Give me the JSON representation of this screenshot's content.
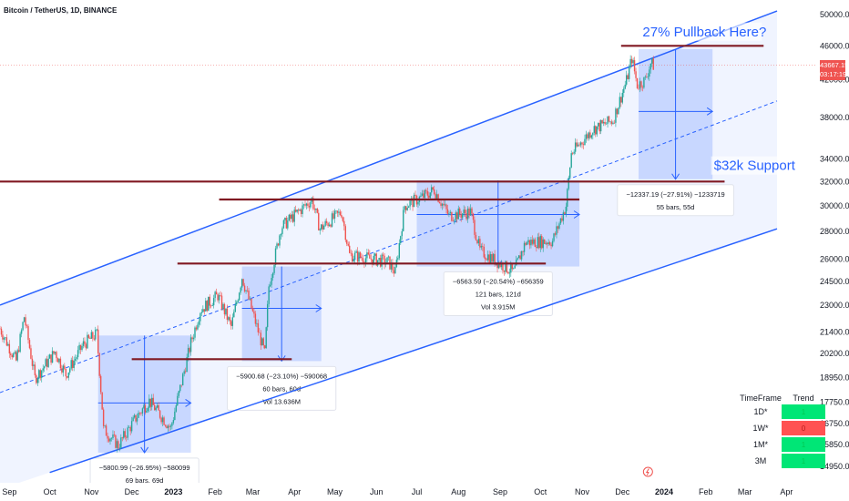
{
  "header": {
    "title": "Bitcoin / TetherUS, 1D, BINANCE"
  },
  "price_tag": {
    "price": "43667.15",
    "countdown": "03:17:19"
  },
  "colors": {
    "up": "#26a69a",
    "down": "#ef5350",
    "channel": "#2962ff",
    "level": "#801922",
    "box": "#2962ff"
  },
  "chart_data": {
    "type": "candlestick",
    "title": "Bitcoin / TetherUS, 1D, BINANCE",
    "y_scale": "log",
    "ylim": [
      14300,
      52000
    ],
    "y_ticks": [
      "14950.00",
      "15850.00",
      "16750.00",
      "17750.00",
      "18950.00",
      "20200.00",
      "21400.00",
      "23000.00",
      "24500.00",
      "26000.00",
      "28000.00",
      "30000.00",
      "32000.00",
      "34000.00",
      "38000.00",
      "42000.00",
      "46000.00",
      "50000.00"
    ],
    "x_ticks": [
      {
        "label": "Sep",
        "date": "2022-09-01",
        "bold": false
      },
      {
        "label": "Oct",
        "date": "2022-10-01",
        "bold": false
      },
      {
        "label": "Nov",
        "date": "2022-11-01",
        "bold": false
      },
      {
        "label": "Dec",
        "date": "2022-12-01",
        "bold": false
      },
      {
        "label": "2023",
        "date": "2023-01-01",
        "bold": true
      },
      {
        "label": "Feb",
        "date": "2023-02-01",
        "bold": false
      },
      {
        "label": "Mar",
        "date": "2023-03-01",
        "bold": false
      },
      {
        "label": "Apr",
        "date": "2023-04-01",
        "bold": false
      },
      {
        "label": "May",
        "date": "2023-05-01",
        "bold": false
      },
      {
        "label": "Jun",
        "date": "2023-06-01",
        "bold": false
      },
      {
        "label": "Jul",
        "date": "2023-07-01",
        "bold": false
      },
      {
        "label": "Aug",
        "date": "2023-08-01",
        "bold": false
      },
      {
        "label": "Sep",
        "date": "2023-09-01",
        "bold": false
      },
      {
        "label": "Oct",
        "date": "2023-10-01",
        "bold": false
      },
      {
        "label": "Nov",
        "date": "2023-11-01",
        "bold": false
      },
      {
        "label": "Dec",
        "date": "2023-12-01",
        "bold": false
      },
      {
        "label": "2024",
        "date": "2024-01-01",
        "bold": true
      },
      {
        "label": "Feb",
        "date": "2024-02-01",
        "bold": false
      },
      {
        "label": "Mar",
        "date": "2024-03-01",
        "bold": false
      },
      {
        "label": "Apr",
        "date": "2024-04-01",
        "bold": false
      }
    ],
    "price_path": [
      [
        "2022-08-25",
        21600
      ],
      [
        "2022-09-06",
        19800
      ],
      [
        "2022-09-12",
        22300
      ],
      [
        "2022-09-20",
        18900
      ],
      [
        "2022-10-05",
        20300
      ],
      [
        "2022-10-13",
        19100
      ],
      [
        "2022-10-26",
        20700
      ],
      [
        "2022-11-05",
        21300
      ],
      [
        "2022-11-09",
        17500
      ],
      [
        "2022-11-10",
        16500
      ],
      [
        "2022-11-21",
        15800
      ],
      [
        "2022-12-05",
        17100
      ],
      [
        "2022-12-14",
        17800
      ],
      [
        "2022-12-30",
        16550
      ],
      [
        "2023-01-14",
        20800
      ],
      [
        "2023-01-21",
        22700
      ],
      [
        "2023-02-03",
        23600
      ],
      [
        "2023-02-13",
        21700
      ],
      [
        "2023-02-21",
        24800
      ],
      [
        "2023-03-10",
        20200
      ],
      [
        "2023-03-13",
        24200
      ],
      [
        "2023-03-22",
        28300
      ],
      [
        "2023-04-11",
        30200
      ],
      [
        "2023-04-14",
        30500
      ],
      [
        "2023-04-20",
        28200
      ],
      [
        "2023-05-06",
        29500
      ],
      [
        "2023-05-12",
        26300
      ],
      [
        "2023-06-10",
        25800
      ],
      [
        "2023-06-15",
        25100
      ],
      [
        "2023-06-22",
        30000
      ],
      [
        "2023-07-05",
        30700
      ],
      [
        "2023-07-14",
        31300
      ],
      [
        "2023-07-25",
        29200
      ],
      [
        "2023-08-10",
        29500
      ],
      [
        "2023-08-17",
        26600
      ],
      [
        "2023-09-11",
        25100
      ],
      [
        "2023-09-20",
        27200
      ],
      [
        "2023-10-10",
        27300
      ],
      [
        "2023-10-20",
        30000
      ],
      [
        "2023-10-24",
        34500
      ],
      [
        "2023-11-09",
        36800
      ],
      [
        "2023-11-24",
        37700
      ],
      [
        "2023-12-04",
        41900
      ],
      [
        "2023-12-08",
        44500
      ],
      [
        "2023-12-12",
        41400
      ],
      [
        "2023-12-18",
        42000
      ],
      [
        "2023-12-22",
        43900
      ],
      [
        "2023-12-24",
        43667
      ]
    ],
    "channel": {
      "upper": [
        [
          "2022-08-25",
          23000
        ],
        [
          "2024-03-25",
          50500
        ]
      ],
      "lower": [
        [
          "2022-10-01",
          14700
        ],
        [
          "2024-03-25",
          28200
        ]
      ],
      "mid": [
        [
          "2022-08-25",
          18200
        ],
        [
          "2024-03-25",
          39700
        ]
      ]
    },
    "levels": [
      {
        "price": 46000,
        "from": "2023-11-30",
        "to": "2024-03-15"
      },
      {
        "price": 32000,
        "from": "2022-08-25",
        "to": "2024-02-15"
      },
      {
        "price": 30500,
        "from": "2023-02-04",
        "to": "2023-10-30"
      },
      {
        "price": 25700,
        "from": "2023-01-04",
        "to": "2023-10-05"
      },
      {
        "price": 19900,
        "from": "2022-12-01",
        "to": "2023-03-30"
      }
    ],
    "measure_boxes": [
      {
        "from": "2022-11-06",
        "to": "2023-01-14",
        "top": 21200,
        "bottom": 15500,
        "arrow_y": 17700,
        "line1": "−5800.99 (−26.95%) −580099",
        "line2": "69 bars, 69d",
        "line3": "Vol 16.436M"
      },
      {
        "from": "2023-02-21",
        "to": "2023-04-21",
        "top": 25500,
        "bottom": 19800,
        "arrow_y": 22800,
        "line1": "−5900.68 (−23.10%) −590068",
        "line2": "60 bars, 60d",
        "line3": "Vol 13.636M"
      },
      {
        "from": "2023-07-01",
        "to": "2023-10-30",
        "top": 32100,
        "bottom": 25500,
        "arrow_y": 29300,
        "line1": "−6563.59 (−20.54%) −656359",
        "line2": "121 bars, 121d",
        "line3": "Vol 3.915M"
      },
      {
        "from": "2023-12-13",
        "to": "2024-02-06",
        "top": 45600,
        "bottom": 32200,
        "arrow_y": 38600,
        "line1": "−12337.19 (−27.91%) −1233719",
        "line2": "55 bars, 55d",
        "line3": ""
      }
    ],
    "annotations": [
      {
        "text": "27% Pullback Here?",
        "date": "2023-12-16",
        "price": 47200
      },
      {
        "text": "$32k Support",
        "date": "2024-02-07",
        "price": 33000
      }
    ]
  },
  "trend_table": {
    "header_tf": "TimeFrame",
    "header_trend": "Trend",
    "rows": [
      {
        "tf": "1D*",
        "trend": "up",
        "value": "1"
      },
      {
        "tf": "1W*",
        "trend": "down",
        "value": "0"
      },
      {
        "tf": "1M*",
        "trend": "up",
        "value": "1"
      },
      {
        "tf": "3M",
        "trend": "up",
        "value": "1"
      }
    ]
  }
}
